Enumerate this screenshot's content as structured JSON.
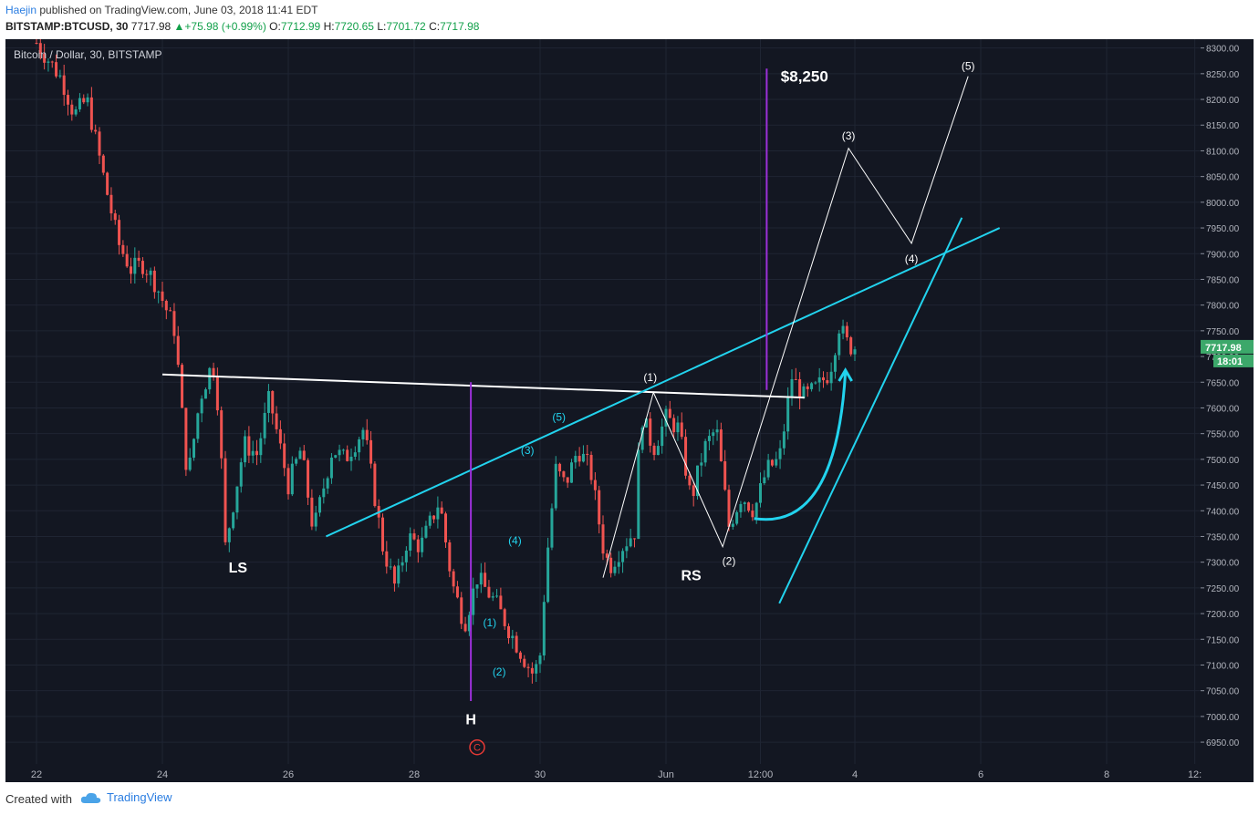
{
  "header": {
    "author": "Haejin",
    "published": "published on TradingView.com, June 03, 2018 11:41 EDT",
    "symbol": "BITSTAMP:BTCUSD, 30",
    "last": "7717.98",
    "change": "+75.98 (+0.99%)",
    "o_label": "O:",
    "o_value": "7712.99",
    "h_label": "H:",
    "h_value": "7720.65",
    "l_label": "L:",
    "l_value": "7701.72",
    "c_label": "C:",
    "c_value": "7717.98"
  },
  "footer": {
    "created_with": "Created with",
    "brand": "TradingView"
  },
  "colors": {
    "background": "#131722",
    "grid": "#1f2533",
    "up": "#26a69a",
    "down": "#ef5350",
    "cyan": "#22d3ee",
    "white": "#ffffff",
    "purple": "#9b30d9",
    "price_badge": "#3ca86a"
  },
  "chart_data": {
    "type": "candlestick",
    "title": "Bitcoin / Dollar, 30, BITSTAMP",
    "ylim": [
      6920,
      8310
    ],
    "yticks": [
      "8300.00",
      "8250.00",
      "8200.00",
      "8150.00",
      "8100.00",
      "8050.00",
      "8000.00",
      "7950.00",
      "7900.00",
      "7850.00",
      "7800.00",
      "7750.00",
      "7700.00",
      "7650.00",
      "7600.00",
      "7550.00",
      "7500.00",
      "7450.00",
      "7400.00",
      "7350.00",
      "7300.00",
      "7250.00",
      "7200.00",
      "7150.00",
      "7100.00",
      "7050.00",
      "7000.00",
      "6950.00"
    ],
    "xticks": [
      "22",
      "24",
      "26",
      "28",
      "30",
      "Jun",
      "12:00",
      "4",
      "6",
      "8",
      "12:"
    ],
    "last_price_label": "7717.98",
    "countdown_label": "18:01",
    "price_path": [
      [
        "22",
        8310
      ],
      [
        "22.4",
        8240
      ],
      [
        "22.6",
        8170
      ],
      [
        "22.8",
        8200
      ],
      [
        "23.1",
        8030
      ],
      [
        "23.3",
        7920
      ],
      [
        "23.5",
        7870
      ],
      [
        "23.7",
        7880
      ],
      [
        "23.9",
        7840
      ],
      [
        "24.2",
        7750
      ],
      [
        "24.4",
        7460
      ],
      [
        "24.6",
        7620
      ],
      [
        "24.8",
        7690
      ],
      [
        "24.9",
        7590
      ],
      [
        "25.0",
        7330
      ],
      [
        "25.3",
        7530
      ],
      [
        "25.5",
        7510
      ],
      [
        "25.7",
        7620
      ],
      [
        "26.0",
        7450
      ],
      [
        "26.2",
        7520
      ],
      [
        "26.4",
        7360
      ],
      [
        "26.7",
        7520
      ],
      [
        "26.9",
        7500
      ],
      [
        "27.2",
        7560
      ],
      [
        "27.5",
        7330
      ],
      [
        "27.7",
        7250
      ],
      [
        "27.9",
        7350
      ],
      [
        "28.1",
        7330
      ],
      [
        "28.4",
        7420
      ],
      [
        "28.6",
        7260
      ],
      [
        "28.8",
        7180
      ],
      [
        "29.0",
        7270
      ],
      [
        "29.3",
        7220
      ],
      [
        "29.5",
        7170
      ],
      [
        "29.8",
        7100
      ],
      [
        "29.9",
        7080
      ],
      [
        "30.0",
        7120
      ],
      [
        "30.1",
        7300
      ],
      [
        "30.25",
        7480
      ],
      [
        "30.4",
        7450
      ],
      [
        "30.6",
        7520
      ],
      [
        "30.8",
        7480
      ],
      [
        "31.0",
        7330
      ],
      [
        "31.1",
        7290
      ],
      [
        "31.3",
        7330
      ],
      [
        "31.5",
        7360
      ],
      [
        "31.6",
        7590
      ],
      [
        "31.8",
        7520
      ],
      [
        "32.0",
        7580
      ],
      [
        "32.2",
        7560
      ],
      [
        "32.4",
        7420
      ],
      [
        "32.6",
        7520
      ],
      [
        "32.8",
        7560
      ],
      [
        "33.0",
        7370
      ],
      [
        "33.2",
        7430
      ],
      [
        "33.4",
        7400
      ],
      [
        "33.6",
        7480
      ],
      [
        "33.8",
        7500
      ],
      [
        "34.0",
        7660
      ],
      [
        "34.2",
        7620
      ],
      [
        "34.4",
        7640
      ],
      [
        "34.6",
        7670
      ],
      [
        "34.75",
        7760
      ],
      [
        "34.9",
        7720
      ],
      [
        "35.0",
        7718
      ]
    ],
    "annotations": {
      "labels": {
        "ls": "LS",
        "h": "H",
        "rs": "RS",
        "target": "$8,250",
        "c1": "(1)",
        "c2": "(2)",
        "c3": "(3)",
        "c4": "(4)",
        "c5": "(5)",
        "w1": "(1)",
        "w2": "(2)",
        "w3": "(3)",
        "w4": "(4)",
        "w5": "(5)",
        "circle_c": "C"
      },
      "neckline": [
        [
          "24.0",
          7665
        ],
        [
          "34.2",
          7620
        ]
      ],
      "channel_upper": [
        [
          "26.6",
          7350
        ],
        [
          "37.3",
          7950
        ]
      ],
      "channel_lower": [
        [
          "33.8",
          7220
        ],
        [
          "36.7",
          7970
        ]
      ],
      "projection": [
        [
          "31.0",
          7270
        ],
        [
          "31.8",
          7630
        ],
        [
          "32.9",
          7330
        ],
        [
          "34.9",
          8105
        ],
        [
          "35.9",
          7920
        ],
        [
          "36.8",
          8245
        ]
      ],
      "measured_move_h": {
        "x": "28.9",
        "from": 7030,
        "to": 7650
      },
      "measured_move_target": {
        "x": "33.6",
        "from": 7635,
        "to": 8260
      }
    }
  }
}
